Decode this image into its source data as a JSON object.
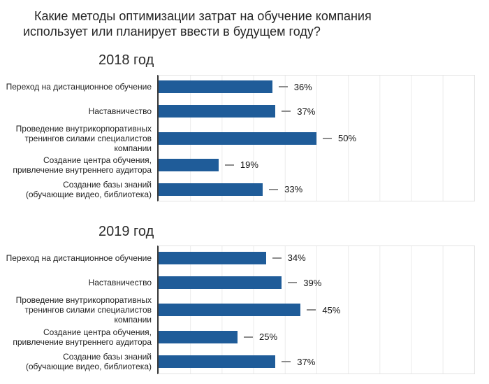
{
  "title": {
    "line1": "Какие методы оптимизации затрат на обучение компания",
    "line2": "использует или планирует ввести в будущем году?"
  },
  "colors": {
    "bar": "#1f5c99",
    "axis": "#3a3a3a",
    "grid": "#ebebeb",
    "plot_border": "#e2e2e2",
    "callout_dash": "#8c8c8c",
    "text": "#1f1f1f"
  },
  "chart_data": [
    {
      "type": "bar",
      "orientation": "horizontal",
      "title": "2018 год",
      "categories": [
        "Переход на дистанционное обучение",
        "Наставничество",
        "Проведение внутрикорпоративных\nтренингов силами специалистов\nкомпании",
        "Создание центра обучения,\nпривлечение внутреннего аудитора",
        "Создание базы знаний\n(обучающие видео, библиотека)"
      ],
      "values": [
        36,
        37,
        50,
        19,
        33
      ],
      "unit": "%",
      "xlim": [
        0,
        100
      ],
      "grid_step": 10,
      "grid": true,
      "legend": "none",
      "data_labels": [
        "36%",
        "37%",
        "50%",
        "19%",
        "33%"
      ]
    },
    {
      "type": "bar",
      "orientation": "horizontal",
      "title": "2019 год",
      "categories": [
        "Переход на дистанционное обучение",
        "Наставничество",
        "Проведение внутрикорпоративных\nтренингов силами специалистов\nкомпании",
        "Создание центра обучения,\nпривлечение внутреннего аудитора",
        "Создание базы знаний\n(обучающие видео, библиотека)"
      ],
      "values": [
        34,
        39,
        45,
        25,
        37
      ],
      "unit": "%",
      "xlim": [
        0,
        100
      ],
      "grid_step": 10,
      "grid": true,
      "legend": "none",
      "data_labels": [
        "34%",
        "39%",
        "45%",
        "25%",
        "37%"
      ]
    }
  ]
}
